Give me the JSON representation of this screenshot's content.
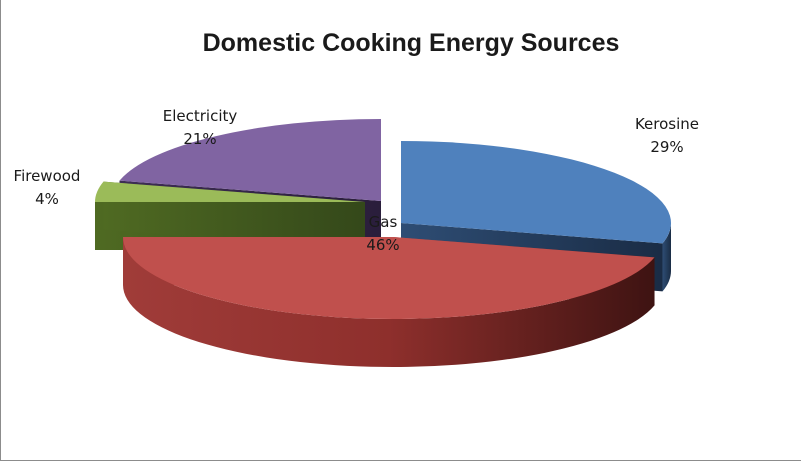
{
  "chart_data": {
    "type": "pie",
    "style": "3d-exploded",
    "title": "Domestic Cooking Energy Sources",
    "legend": "none",
    "slices": [
      {
        "name": "Kerosine",
        "value": 29,
        "label": "29%",
        "color": "#4f81bd"
      },
      {
        "name": "Gas",
        "value": 46,
        "label": "46%",
        "color": "#c0504d"
      },
      {
        "name": "Firewood",
        "value": 4,
        "label": "4%",
        "color": "#9bbb59"
      },
      {
        "name": "Electricity",
        "value": 21,
        "label": "21%",
        "color": "#8064a2"
      }
    ]
  }
}
